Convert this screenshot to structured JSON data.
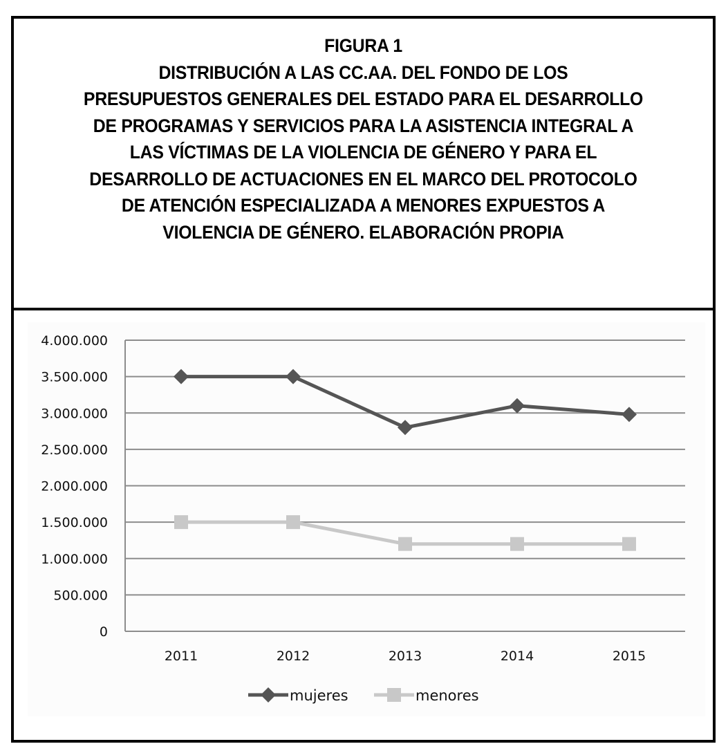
{
  "figure": {
    "label": "FIGURA 1",
    "title_lines": [
      "DISTRIBUCIÓN A LAS CC.AA. DEL FONDO DE LOS",
      "PRESUPUESTOS GENERALES DEL ESTADO PARA EL DESARROLLO",
      "DE PROGRAMAS Y SERVICIOS PARA LA ASISTENCIA INTEGRAL A",
      "LAS VÍCTIMAS DE LA VIOLENCIA DE GÉNERO Y PARA EL",
      "DESARROLLO DE ACTUACIONES EN EL MARCO DEL PROTOCOLO",
      "DE ATENCIÓN ESPECIALIZADA A MENORES EXPUESTOS A",
      "VIOLENCIA DE GÉNERO. ELABORACIÓN PROPIA"
    ]
  },
  "chart_data": {
    "type": "line",
    "title": "FIGURA 1 — Distribución a las CC.AA. del fondo de los Presupuestos Generales del Estado para el desarrollo de programas y servicios para la asistencia integral a las víctimas de la violencia de género y para el desarrollo de actuaciones en el marco del protocolo de atención especializada a menores expuestos a violencia de género. Elaboración propia",
    "categories": [
      "2011",
      "2012",
      "2013",
      "2014",
      "2015"
    ],
    "series": [
      {
        "name": "mujeres",
        "values": [
          3500000,
          3500000,
          2800000,
          3100000,
          2980000
        ],
        "color": "#555555",
        "marker": "diamond"
      },
      {
        "name": "menores",
        "values": [
          1500000,
          1500000,
          1200000,
          1200000,
          1200000
        ],
        "color": "#c8c8c8",
        "marker": "square"
      }
    ],
    "xlabel": "",
    "ylabel": "",
    "ylim": [
      0,
      4000000
    ],
    "yticks": [
      0,
      500000,
      1000000,
      1500000,
      2000000,
      2500000,
      3000000,
      3500000,
      4000000
    ],
    "ytick_labels": [
      "0",
      "500.000",
      "1.000.000",
      "1.500.000",
      "2.000.000",
      "2.500.000",
      "3.000.000",
      "3.500.000",
      "4.000.000"
    ],
    "grid": true,
    "legend_position": "bottom"
  }
}
